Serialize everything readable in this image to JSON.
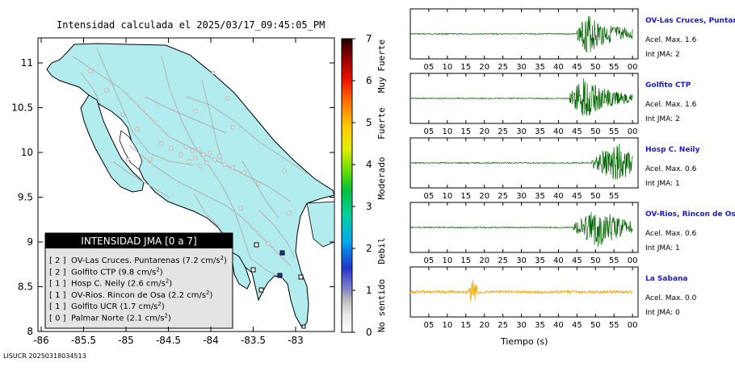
{
  "map": {
    "title": "Intensidad calculada el 2025/03/17_09:45:05_PM",
    "x_ticks": [
      "-86",
      "-85.5",
      "-85",
      "-84.5",
      "-84",
      "-83.5",
      "-83"
    ],
    "y_ticks": [
      "8",
      "8.5",
      "9",
      "9.5",
      "10",
      "10.5",
      "11"
    ],
    "colors": {
      "land": "#b3ecee",
      "border": "#000000",
      "roads": "#b0b0b0",
      "station_marker": "#2436a8"
    },
    "footer_id": "LISUCR 20250318034513"
  },
  "colorbar": {
    "ticks": [
      "0",
      "1",
      "2",
      "3",
      "4",
      "5",
      "6",
      "7"
    ],
    "categories": [
      "No sentido",
      "Debil",
      "Moderado",
      "Fuerte",
      "Muy Fuerte"
    ]
  },
  "legend": {
    "title": "INTENSIDAD JMA [0 a 7]",
    "items": [
      {
        "level": "[ 2 ]",
        "station": "OV-Las Cruces. Puntarenas",
        "value": "(7.2 cm/s",
        "sup": "2",
        "close": ")"
      },
      {
        "level": "[ 2 ]",
        "station": "Golfito CTP",
        "value": "(9.8 cm/s",
        "sup": "2",
        "close": ")"
      },
      {
        "level": "[ 1 ]",
        "station": "Hosp C. Neily",
        "value": "(2.6 cm/s",
        "sup": "2",
        "close": ")"
      },
      {
        "level": "[ 1 ]",
        "station": "OV-Rios. Rincon de Osa",
        "value": "(2.2 cm/s",
        "sup": "2",
        "close": ")"
      },
      {
        "level": "[ 1 ]",
        "station": "Golfito UCR",
        "value": "(1.7 cm/s",
        "sup": "2",
        "close": ")"
      },
      {
        "level": "[ 0 ]",
        "station": "Palmar Norte",
        "value": "(2.1 cm/s",
        "sup": "2",
        "close": ")"
      }
    ]
  },
  "chart_data": {
    "type": "line",
    "x_axis_title": "Tiempo (s)",
    "panels": [
      {
        "station": "OV-Las Cruces, Puntar",
        "acel_text": "Acel. Max. 1.6",
        "int_text": "Int JMA: 2",
        "color": "#006400",
        "tick_labels": [
          "05",
          "10",
          "15",
          "20",
          "25",
          "30",
          "35",
          "40",
          "45",
          "50",
          "55",
          "00"
        ],
        "onset_s": 45,
        "peak_s": 48,
        "end_s": 60
      },
      {
        "station": "Golfito CTP",
        "acel_text": "Acel. Max. 1.6",
        "int_text": "Int JMA: 2",
        "color": "#006400",
        "tick_labels": [
          "05",
          "10",
          "15",
          "20",
          "25",
          "30",
          "35",
          "40",
          "45",
          "50",
          "55",
          "00"
        ],
        "onset_s": 43,
        "peak_s": 47,
        "end_s": 60
      },
      {
        "station": "Hosp C. Neily",
        "acel_text": "Acel. Max. 0.6",
        "int_text": "Int JMA: 1",
        "color": "#006400",
        "tick_labels": [
          "05",
          "10",
          "15",
          "20",
          "25",
          "30",
          "35",
          "40",
          "45",
          "50",
          "55"
        ],
        "onset_s": 49,
        "peak_s": 56,
        "end_s": 60
      },
      {
        "station": "OV-Rios, Rincon de Os",
        "acel_text": "Acel. Max. 0.6",
        "int_text": "Int JMA: 1",
        "color": "#006400",
        "tick_labels": [
          "05",
          "10",
          "15",
          "20",
          "25",
          "30",
          "35",
          "40",
          "45",
          "50",
          "55",
          "00"
        ],
        "onset_s": 44,
        "peak_s": 51,
        "end_s": 60
      },
      {
        "station": "La Sabana",
        "acel_text": "Acel. Max. 0.0",
        "int_text": "Int JMA: 0",
        "color": "#f0a500",
        "tick_labels": [
          "05",
          "10",
          "15",
          "20",
          "25",
          "30",
          "35",
          "40",
          "45",
          "50",
          "55",
          "00"
        ],
        "onset_s": 1,
        "peak_s": 17,
        "end_s": 60
      }
    ]
  }
}
